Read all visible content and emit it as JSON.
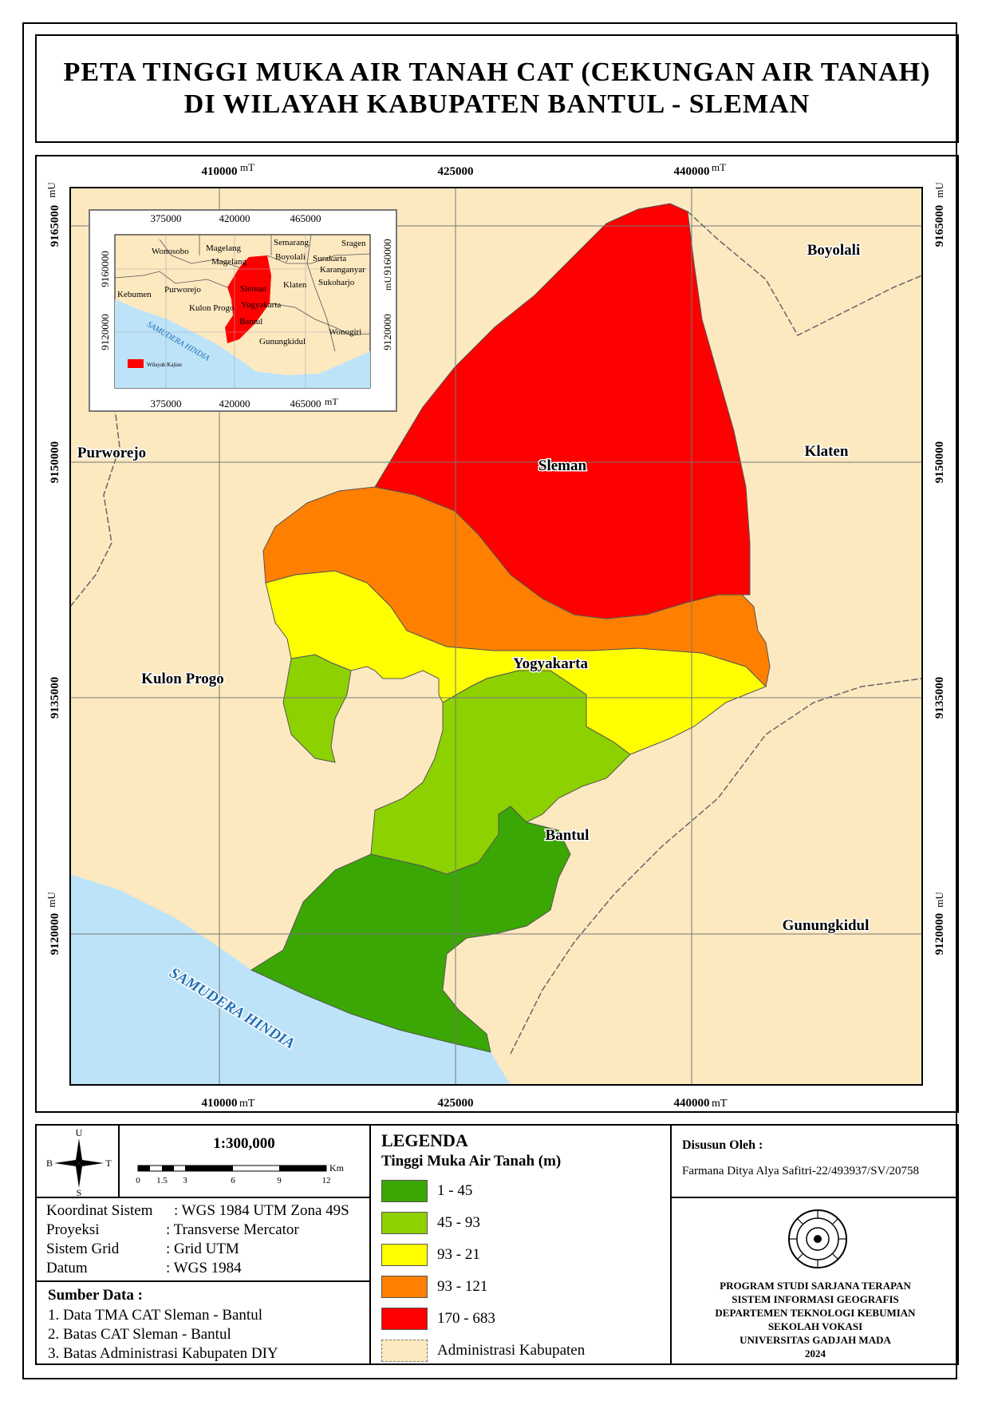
{
  "title": {
    "line1": "PETA TINGGI MUKA AIR TANAH CAT (CEKUNGAN AIR TANAH)",
    "line2": "DI WILAYAH KABUPATEN BANTUL - SLEMAN"
  },
  "map": {
    "x_ticks": [
      {
        "value": "410000",
        "unit": "mT"
      },
      {
        "value": "425000",
        "unit": ""
      },
      {
        "value": "440000",
        "unit": "mT"
      }
    ],
    "x_ticks_bottom": [
      {
        "value": "410000",
        "unit": "mT"
      },
      {
        "value": "425000",
        "unit": ""
      },
      {
        "value": "440000",
        "unit": "mT"
      }
    ],
    "y_ticks": [
      {
        "value": "9165000",
        "unit": "mU"
      },
      {
        "value": "9150000",
        "unit": ""
      },
      {
        "value": "9135000",
        "unit": ""
      },
      {
        "value": "9120000",
        "unit": "mU"
      }
    ],
    "region_labels": {
      "boyolali": "Boyolali",
      "klaten": "Klaten",
      "purworejo": "Purworejo",
      "sleman": "Sleman",
      "yogyakarta": "Yogyakarta",
      "kulon_progo": "Kulon Progo",
      "bantul": "Bantul",
      "gunungkidul": "Gunungkidul",
      "ocean": "SAMUDERA HINDIA"
    },
    "colors": {
      "background": "#fde9c0",
      "ocean": "#bde3f8",
      "class_1_45": "#3aa704",
      "class_45_93": "#8dd100",
      "class_93_21": "#ffff00",
      "class_93_121": "#ff8000",
      "class_170_683": "#ff0000"
    }
  },
  "inset": {
    "x_ticks": [
      "375000",
      "420000",
      "465000"
    ],
    "x_ticks_bottom": [
      "375000",
      "420000",
      "465000"
    ],
    "x_unit_bottom": "mT",
    "y_ticks": [
      "9160000",
      "9120000"
    ],
    "y_unit": "mU",
    "labels": {
      "wonosobo": "Wonosobo",
      "magelang1": "Magelang",
      "magelang2": "Magelang",
      "semarang": "Semarang",
      "sragen": "Sragen",
      "boyolali": "Boyolali",
      "surakarta": "Surakarta",
      "karanganyar": "Karanganyar",
      "sukoharjo": "Sukoharjo",
      "kebumen": "Kebumen",
      "purworejo": "Purworejo",
      "sleman": "Sleman",
      "klaten": "Klaten",
      "kulon_progo": "Kulon Progo",
      "yogyakarta": "Yogyakarta",
      "bantul": "Bantul",
      "wonogiri": "Wonogiri",
      "gunungkidul": "Gunungkidul",
      "ocean": "SAMUDERA HINDIA"
    },
    "legend_label": "Wilayah Kajian"
  },
  "compass": {
    "n": "U",
    "s": "S",
    "e": "T",
    "w": "B"
  },
  "scale": {
    "text": "1:300,000",
    "unit": "Km",
    "ticks": [
      "0",
      "1.5",
      "3",
      "6",
      "9",
      "12"
    ]
  },
  "coord_info": [
    {
      "label": "Koordinat Sistem",
      "value": ": WGS 1984 UTM Zona 49S"
    },
    {
      "label": "Proyeksi",
      "value": ": Transverse Mercator"
    },
    {
      "label": "Sistem Grid",
      "value": ": Grid UTM"
    },
    {
      "label": "Datum",
      "value": ": WGS 1984"
    }
  ],
  "sources": {
    "heading": "Sumber Data :",
    "items": [
      "1. Data TMA CAT Sleman - Bantul",
      "2. Batas CAT Sleman - Bantul",
      "3. Batas Administrasi Kabupaten DIY"
    ]
  },
  "legend": {
    "heading": "LEGENDA",
    "subheading": "Tinggi Muka Air Tanah (m)",
    "items": [
      {
        "label": "1 - 45",
        "color": "#3aa704"
      },
      {
        "label": "45 - 93",
        "color": "#8dd100"
      },
      {
        "label": "93 - 21",
        "color": "#ffff00"
      },
      {
        "label": "93 - 121",
        "color": "#ff8000"
      },
      {
        "label": "170 - 683",
        "color": "#ff0000"
      }
    ],
    "admin_label": "Administrasi Kabupaten"
  },
  "author": {
    "heading": "Disusun Oleh :",
    "name": "Farmana Ditya Alya Safitri-22/493937/SV/20758"
  },
  "institution": {
    "lines": [
      "PROGRAM STUDI SARJANA TERAPAN",
      "SISTEM INFORMASI GEOGRAFIS",
      "DEPARTEMEN TEKNOLOGI KEBUMIAN",
      "SEKOLAH VOKASI",
      "UNIVERSITAS GADJAH MADA",
      "2024"
    ]
  }
}
